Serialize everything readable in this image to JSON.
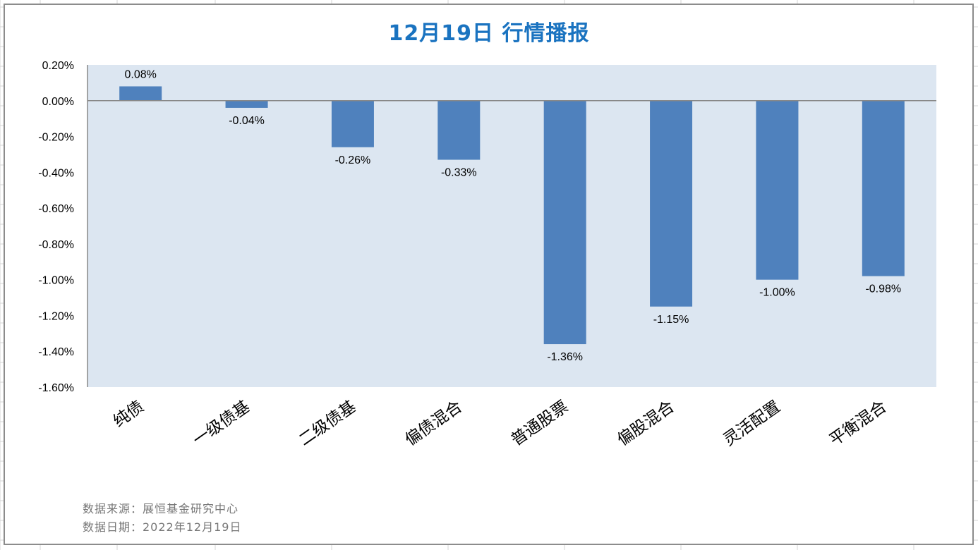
{
  "chart_data": {
    "type": "bar",
    "title": "12月19日  行情播报",
    "categories": [
      "纯债",
      "一级债基",
      "二级债基",
      "偏债混合",
      "普通股票",
      "偏股混合",
      "灵活配置",
      "平衡混合"
    ],
    "values": [
      0.08,
      -0.04,
      -0.26,
      -0.33,
      -1.36,
      -1.15,
      -1.0,
      -0.98
    ],
    "data_labels": [
      "0.08%",
      "-0.04%",
      "-0.26%",
      "-0.33%",
      "-1.36%",
      "-1.15%",
      "-1.00%",
      "-0.98%"
    ],
    "ylim": [
      -1.6,
      0.2
    ],
    "yticks": [
      "0.20%",
      "0.00%",
      "-0.20%",
      "-0.40%",
      "-0.60%",
      "-0.80%",
      "-1.00%",
      "-1.20%",
      "-1.40%",
      "-1.60%"
    ],
    "ytick_values": [
      0.2,
      0,
      -0.2,
      -0.4,
      -0.6,
      -0.8,
      -1.0,
      -1.2,
      -1.4,
      -1.6
    ],
    "xlabel": "",
    "ylabel": "",
    "grid": false,
    "legend": "none",
    "colors": {
      "bar": "#4f81bd",
      "plot_bg": "#dce6f1",
      "title": "#1a73c0"
    }
  },
  "footer": {
    "source": "数据来源：展恒基金研究中心",
    "date": "数据日期：2022年12月19日"
  }
}
